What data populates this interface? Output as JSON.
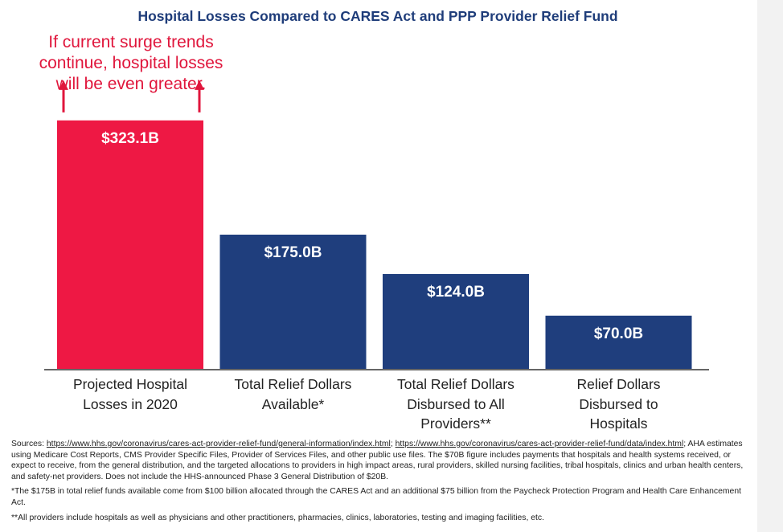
{
  "chart_data": {
    "type": "bar",
    "title": "Hospital Losses Compared to CARES Act and PPP Provider Relief Fund",
    "categories": [
      [
        "Projected Hospital",
        "Losses in 2020"
      ],
      [
        "Total Relief Dollars",
        "Available*"
      ],
      [
        "Total Relief Dollars",
        "Disbursed to All",
        "Providers**"
      ],
      [
        "Relief Dollars",
        "Disbursed to",
        "Hospitals"
      ]
    ],
    "values": [
      323.1,
      175.0,
      124.0,
      70.0
    ],
    "value_labels": [
      "$323.1B",
      "$175.0B",
      "$124.0B",
      "$70.0B"
    ],
    "colors": [
      "#ee1844",
      "#1f3e7d",
      "#1f3e7d",
      "#1f3e7d"
    ],
    "units": "billions of dollars",
    "ylim": [
      0,
      400
    ],
    "grid": false,
    "annotation": {
      "lines": [
        "If current surge trends",
        "continue, hospital losses",
        "will be even greater."
      ],
      "color": "#e0163c"
    }
  },
  "footnotes": {
    "sources_prefix": "Sources: ",
    "link1": "https://www.hhs.gov/coronavirus/cares-act-provider-relief-fund/general-information/index.html",
    "separator": "; ",
    "link2": "https://www.hhs.gov/coronavirus/cares-act-provider-relief-fund/data/index.html",
    "sources_rest": "; AHA estimates using Medicare Cost Reports, CMS Provider Specific Files, Provider of Services Files, and other public use files. The $70B figure includes payments that hospitals and health systems received, or expect to receive, from the general distribution, and the targeted allocations to providers in high impact areas, rural providers, skilled nursing facilities, tribal hospitals, clinics and urban health centers, and safety-net providers. Does not include the HHS-announced Phase 3 General Distribution of $20B.",
    "note1": "*The $175B in total relief funds available come from $100 billion allocated through the CARES Act and an additional $75 billion from the Paycheck Protection Program and Health Care Enhancement Act.",
    "note2": "**All providers include hospitals as well as physicians and other practitioners, pharmacies, clinics, laboratories, testing and imaging facilities, etc."
  }
}
